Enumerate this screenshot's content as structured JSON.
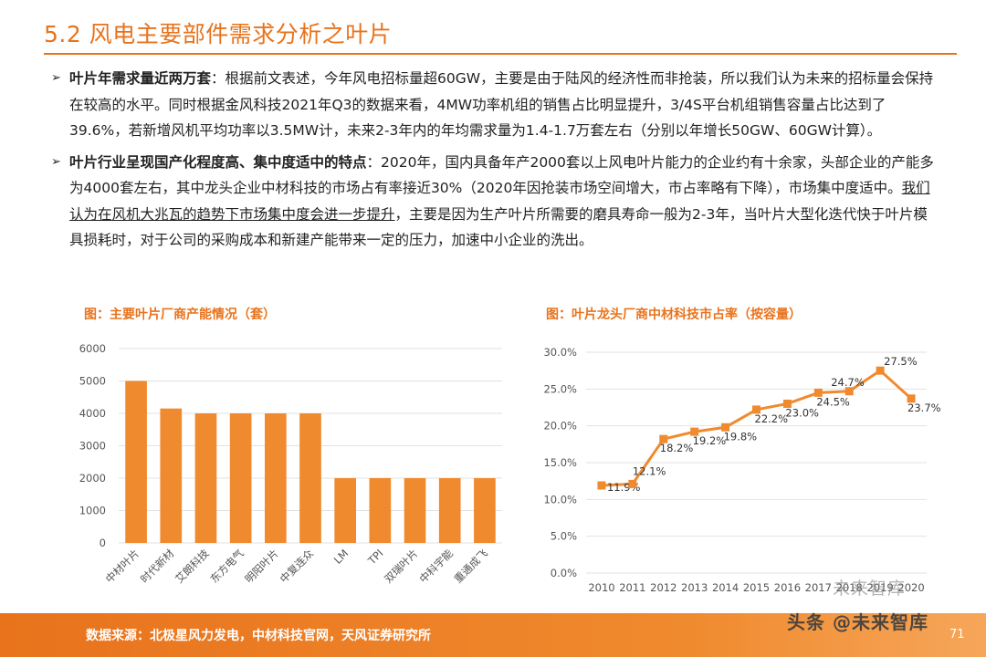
{
  "slide": {
    "title": "5.2 风电主要部件需求分析之叶片"
  },
  "bullets": [
    {
      "marker": "➢",
      "head": "叶片年需求量近两万套",
      "text": "：根据前文表述，今年风电招标量超60GW，主要是由于陆风的经济性而非抢装，所以我们认为未来的招标量会保持在较高的水平。同时根据金风科技2021年Q3的数据来看，4MW功率机组的销售占比明显提升，3/4S平台机组销售容量占比达到了39.6%，若新增风机平均功率以3.5MW计，未来2-3年内的年均需求量为1.4-1.7万套左右（分别以年增长50GW、60GW计算）。"
    },
    {
      "marker": "➢",
      "head": "叶片行业呈现国产化程度高、集中度适中的特点",
      "text_a": "：2020年，国内具备年产2000套以上风电叶片能力的企业约有十余家，头部企业的产能多为4000套左右，其中龙头企业中材科技的市场占有率接近30%（2020年因抢装市场空间增大，市占率略有下降），市场集中度适中。",
      "underlined": "我们认为在风机大兆瓦的趋势下市场集中度会进一步提升",
      "text_b": "，主要是因为生产叶片所需要的磨具寿命一般为2-3年，当叶片大型化迭代快于叶片模具损耗时，对于公司的采购成本和新建产能带来一定的压力，加速中小企业的洗出。"
    }
  ],
  "chart_left_title": "图：主要叶片厂商产能情况（套）",
  "chart_right_title": "图：叶片龙头厂商中材科技市占率（按容量）",
  "chart_data": [
    {
      "type": "bar",
      "title": "图：主要叶片厂商产能情况（套）",
      "categories": [
        "中材叶片",
        "时代新材",
        "艾朗科技",
        "东方电气",
        "明阳叶片",
        "中复连众",
        "LM",
        "TPI",
        "双瑞叶片",
        "中科宇能",
        "重通成飞"
      ],
      "values": [
        5000,
        4150,
        4000,
        4000,
        4000,
        4000,
        2000,
        2000,
        2000,
        2000,
        2000
      ],
      "ylim": [
        0,
        6000
      ],
      "yticks": [
        "0",
        "1000",
        "2000",
        "3000",
        "4000",
        "5000",
        "6000"
      ],
      "color": "#F08A2E",
      "grid": true
    },
    {
      "type": "line",
      "title": "图：叶片龙头厂商中材科技市占率（按容量）",
      "x": [
        "2010",
        "2011",
        "2012",
        "2013",
        "2014",
        "2015",
        "2016",
        "2017",
        "2018",
        "2019",
        "2020"
      ],
      "values": [
        11.9,
        12.1,
        18.2,
        19.2,
        19.8,
        22.2,
        23.0,
        24.5,
        24.7,
        27.5,
        23.7
      ],
      "labels": [
        "11.9%",
        "12.1%",
        "18.2%",
        "19.2%",
        "19.8%",
        "22.2%",
        "23.0%",
        "24.5%",
        "24.7%",
        "27.5%",
        "23.7%"
      ],
      "ylim": [
        0,
        30
      ],
      "yticks": [
        "0.0%",
        "5.0%",
        "10.0%",
        "15.0%",
        "20.0%",
        "25.0%",
        "30.0%"
      ],
      "color": "#F08A2E",
      "grid": true
    }
  ],
  "footer": {
    "source": "数据来源：北极星风力发电，中材科技官网，天风证券研究所",
    "watermark": "头条 @未来智库",
    "watermark_faint": "未来智库",
    "page": "71",
    "brand_color": "#E8731C"
  }
}
